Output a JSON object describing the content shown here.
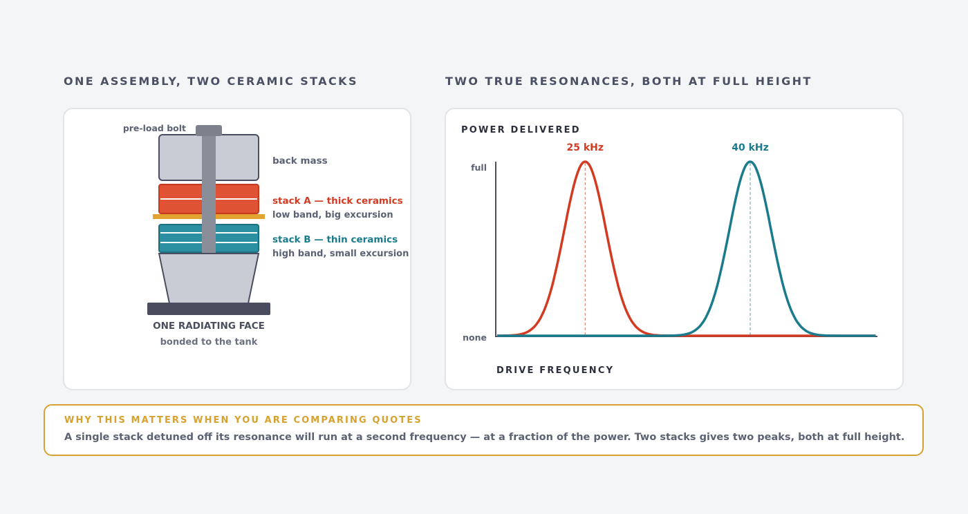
{
  "left_panel": {
    "title": "ONE ASSEMBLY, TWO CERAMIC STACKS",
    "labels": {
      "bolt": "pre-load bolt",
      "back_mass": "back mass",
      "stack_a_title": "stack A — thick ceramics",
      "stack_a_sub": "low band, big excursion",
      "stack_b_title": "stack B — thin ceramics",
      "stack_b_sub": "high band, small excursion",
      "face_title": "ONE RADIATING FACE",
      "face_sub": "bonded to the tank"
    }
  },
  "right_panel": {
    "title": "TWO TRUE RESONANCES, BOTH AT FULL HEIGHT"
  },
  "chart_data": {
    "type": "line",
    "ylabel": "POWER DELIVERED",
    "xlabel": "DRIVE FREQUENCY",
    "y_ticks": [
      "full",
      "none"
    ],
    "ylim": [
      0,
      1
    ],
    "grid": false,
    "legend": "none",
    "series": [
      {
        "peak_label": "25 kHz",
        "peak_khz": 25,
        "peak_value": 1,
        "color": "#d23b22"
      },
      {
        "peak_label": "40 kHz",
        "peak_khz": 40,
        "peak_value": 1,
        "color": "#1a7b8c"
      }
    ]
  },
  "callout": {
    "title": "WHY THIS MATTERS WHEN YOU ARE COMPARING QUOTES",
    "body": "A single stack detuned off its resonance will run at a second frequency — at a fraction of the power. Two stacks gives two peaks, both at full height."
  },
  "colors": {
    "stack_a": "#e05234",
    "stack_b": "#2a8fa1",
    "accent": "#d6a12e",
    "metal": "#c9ccd5",
    "dark": "#4a4d5e"
  }
}
